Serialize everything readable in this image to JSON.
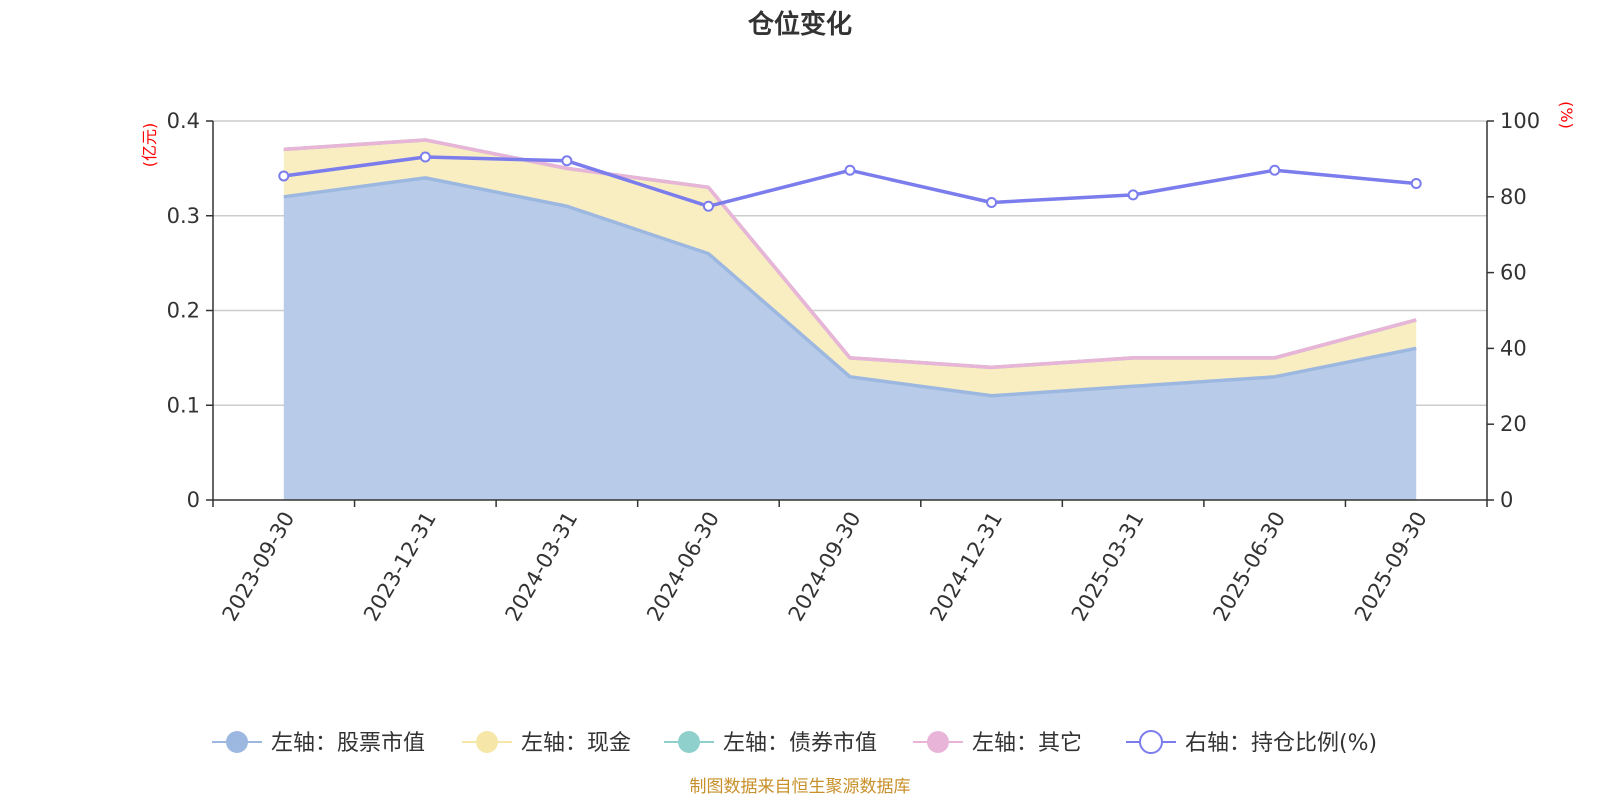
{
  "chart_data": {
    "type": "area",
    "title": "仓位变化",
    "left_unit": "(亿元)",
    "right_unit": "(%)",
    "categories": [
      "2023-09-30",
      "2023-12-31",
      "2024-03-31",
      "2024-06-30",
      "2024-09-30",
      "2024-12-31",
      "2025-03-31",
      "2025-06-30",
      "2025-09-30"
    ],
    "left_axis": {
      "min": 0,
      "max": 0.4,
      "ticks": [
        "0",
        "0.1",
        "0.2",
        "0.3",
        "0.4"
      ]
    },
    "right_axis": {
      "min": 0,
      "max": 100,
      "ticks": [
        "0",
        "20",
        "40",
        "60",
        "80",
        "100"
      ]
    },
    "series": [
      {
        "name": "左轴：股票市值",
        "axis": "left",
        "stack": true,
        "color": "#9db8e0",
        "fill": "#b8cce9",
        "values": [
          0.32,
          0.34,
          0.31,
          0.26,
          0.13,
          0.11,
          0.12,
          0.13,
          0.16
        ]
      },
      {
        "name": "左轴：现金",
        "axis": "left",
        "stack": true,
        "color": "#f6e6a8",
        "fill": "#f9edc2",
        "values": [
          0.05,
          0.04,
          0.04,
          0.07,
          0.02,
          0.03,
          0.03,
          0.02,
          0.03
        ]
      },
      {
        "name": "左轴：债券市值",
        "axis": "left",
        "stack": true,
        "color": "#8fd0cc",
        "fill": "#b9e3e0",
        "values": [
          0,
          0,
          0,
          0,
          0,
          0,
          0,
          0,
          0
        ]
      },
      {
        "name": "左轴：其它",
        "axis": "left",
        "stack": true,
        "color": "#e8b4d8",
        "fill": "#f2d3e8",
        "values": [
          0,
          0,
          0,
          0,
          0,
          0,
          0,
          0,
          0
        ]
      },
      {
        "name": "右轴：持仓比例(%)",
        "axis": "right",
        "stack": false,
        "color": "#7b7ded",
        "values": [
          85.5,
          90.5,
          89.5,
          77.5,
          87,
          78.5,
          80.5,
          87,
          83.5
        ]
      }
    ],
    "source": "制图数据来自恒生聚源数据库"
  }
}
